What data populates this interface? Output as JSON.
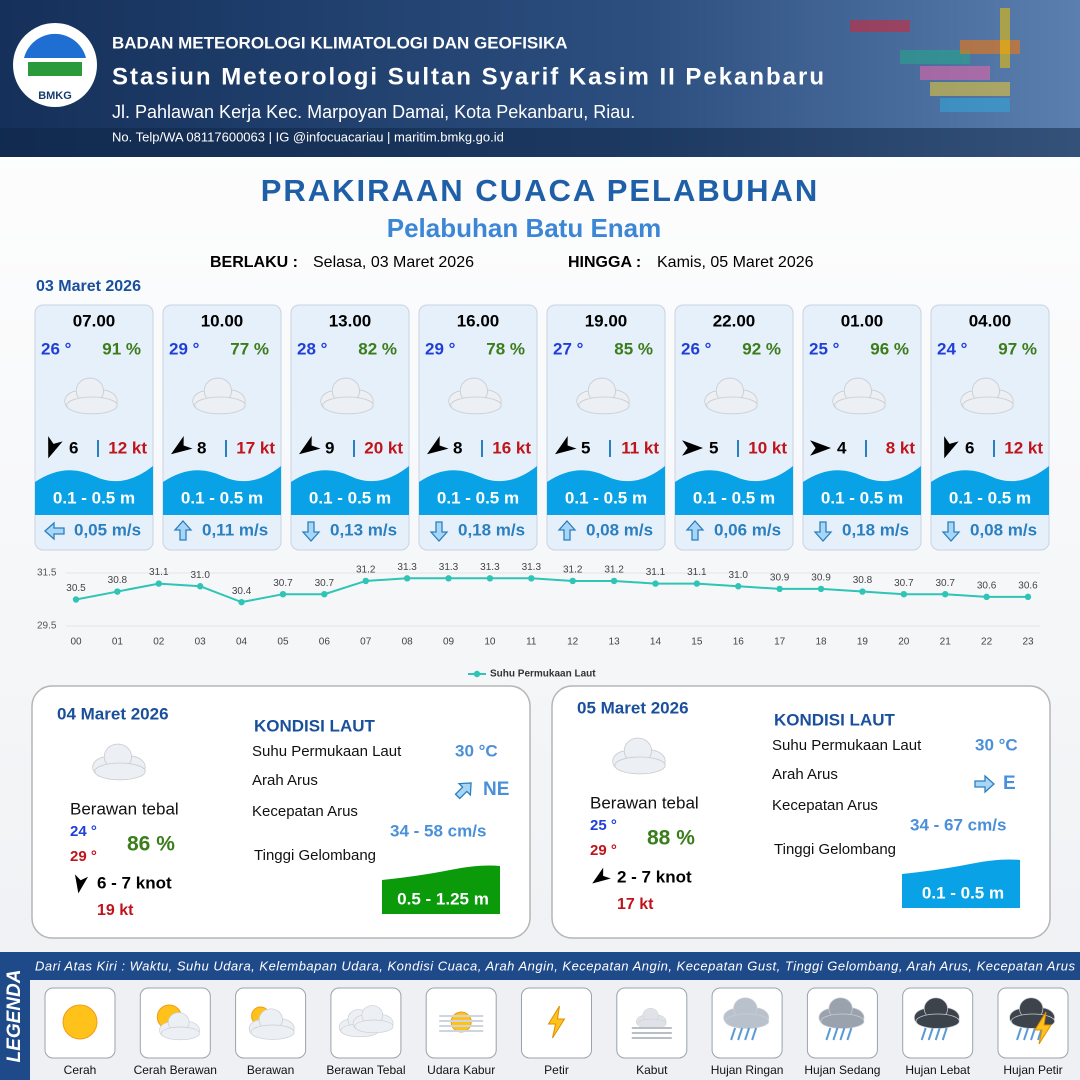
{
  "header": {
    "logo": "BMKG",
    "org": "BADAN METEOROLOGI KLIMATOLOGI DAN GEOFISIKA",
    "station": "Stasiun Meteorologi Sultan Syarif Kasim II Pekanbaru",
    "address": "Jl. Pahlawan Kerja Kec. Marpoyan Damai, Kota Pekanbaru, Riau.",
    "contact": "No. Telp/WA 08117600063 | IG @infocuacariau | maritim.bmkg.go.id"
  },
  "title": "PRAKIRAAN CUACA PELABUHAN",
  "subtitle": "Pelabuhan Batu Enam",
  "validity": {
    "from_label": "BERLAKU :",
    "from": "Selasa, 03 Maret 2026",
    "to_label": "HINGGA :",
    "to": "Kamis, 05 Maret 2026"
  },
  "day1_date": "03 Maret 2026",
  "cards": [
    {
      "time": "07.00",
      "temp": "26 °",
      "rh": "91 %",
      "wind": "6",
      "gust": "12 kt",
      "wave": "0.1 - 0.5 m",
      "current": "0,05 m/s"
    },
    {
      "time": "10.00",
      "temp": "29 °",
      "rh": "77 %",
      "wind": "8",
      "gust": "17 kt",
      "wave": "0.1 - 0.5 m",
      "current": "0,11 m/s"
    },
    {
      "time": "13.00",
      "temp": "28 °",
      "rh": "82 %",
      "wind": "9",
      "gust": "20 kt",
      "wave": "0.1 - 0.5 m",
      "current": "0,13 m/s"
    },
    {
      "time": "16.00",
      "temp": "29 °",
      "rh": "78 %",
      "wind": "8",
      "gust": "16 kt",
      "wave": "0.1 - 0.5 m",
      "current": "0,18 m/s"
    },
    {
      "time": "19.00",
      "temp": "27 °",
      "rh": "85 %",
      "wind": "5",
      "gust": "11 kt",
      "wave": "0.1 - 0.5 m",
      "current": "0,08 m/s"
    },
    {
      "time": "22.00",
      "temp": "26 °",
      "rh": "92 %",
      "wind": "5",
      "gust": "10 kt",
      "wave": "0.1 - 0.5 m",
      "current": "0,06 m/s"
    },
    {
      "time": "01.00",
      "temp": "25 °",
      "rh": "96 %",
      "wind": "4",
      "gust": "8 kt",
      "wave": "0.1 - 0.5 m",
      "current": "0,18 m/s"
    },
    {
      "time": "04.00",
      "temp": "24 °",
      "rh": "97 %",
      "wind": "6",
      "gust": "12 kt",
      "wave": "0.1 - 0.5 m",
      "current": "0,08 m/s"
    }
  ],
  "chart_data": {
    "type": "line",
    "categories": [
      "00",
      "01",
      "02",
      "03",
      "04",
      "05",
      "06",
      "07",
      "08",
      "09",
      "10",
      "11",
      "12",
      "13",
      "14",
      "15",
      "16",
      "17",
      "18",
      "19",
      "20",
      "21",
      "22",
      "23"
    ],
    "series": [
      {
        "name": "Suhu Permukaan Laut",
        "color": "#2ec4b6",
        "values": [
          30.5,
          30.8,
          31.1,
          31.0,
          30.4,
          30.7,
          30.7,
          31.2,
          31.3,
          31.3,
          31.3,
          31.3,
          31.2,
          31.2,
          31.1,
          31.1,
          31.0,
          30.9,
          30.9,
          30.8,
          30.7,
          30.7,
          30.6,
          30.6
        ],
        "value_labels": [
          "30.5",
          "30.8",
          "31.1",
          "31.0",
          "30.4",
          "30.7",
          "30.7",
          "31.2",
          "31.3",
          "31.3",
          "31.3",
          "31.3",
          "31.2",
          "31.2",
          "31.1",
          "31.1",
          "31.0",
          "30.9",
          "30.9",
          "30.8",
          "30.7",
          "30.7",
          "30.6",
          "30.6"
        ]
      }
    ],
    "ylim": [
      29.5,
      31.5
    ],
    "yticks": [
      29.5,
      31.5
    ],
    "grid": true,
    "legend": "bottom"
  },
  "days": [
    {
      "date": "04 Maret 2026",
      "weather": "Berawan tebal",
      "tmin": "24 °",
      "tmax": "29 °",
      "rh": "86 %",
      "wind": "6  - 7 knot",
      "gust": "19 kt",
      "heading": "KONDISI LAUT",
      "sst_label": "Suhu Permukaan Laut",
      "sst": "30 °C",
      "dir_label": "Arah Arus",
      "dir": "NE",
      "speed_label": "Kecepatan Arus",
      "speed": "34  - 58 cm/s",
      "wave_label": "Tinggi Gelombang",
      "wave": "0.5 - 1.25 m",
      "wave_color": "#0a9a0a"
    },
    {
      "date": "05 Maret 2026",
      "weather": "Berawan tebal",
      "tmin": "25 °",
      "tmax": "29 °",
      "rh": "88 %",
      "wind": "2 - 7 knot",
      "gust": "17 kt",
      "heading": "KONDISI LAUT",
      "sst_label": "Suhu Permukaan Laut",
      "sst": "30 °C",
      "dir_label": "Arah Arus",
      "dir": "E",
      "speed_label": "Kecepatan Arus",
      "speed": "34 - 67 cm/s",
      "wave_label": "Tinggi Gelombang",
      "wave": "0.1 - 0.5 m",
      "wave_color": "#0aa2e6"
    }
  ],
  "legend": {
    "title": "LEGENDA",
    "description": "Dari Atas Kiri : Waktu, Suhu Udara, Kelembapan Udara, Kondisi Cuaca, Arah Angin, Kecepatan Angin, Kecepatan Gust, Tinggi Gelombang, Arah Arus, Kecepatan Arus",
    "items": [
      "Cerah",
      "Cerah Berawan",
      "Berawan",
      "Berawan Tebal",
      "Udara Kabur",
      "Petir",
      "Kabut",
      "Hujan Ringan",
      "Hujan Sedang",
      "Hujan Lebat",
      "Hujan Petir"
    ]
  }
}
